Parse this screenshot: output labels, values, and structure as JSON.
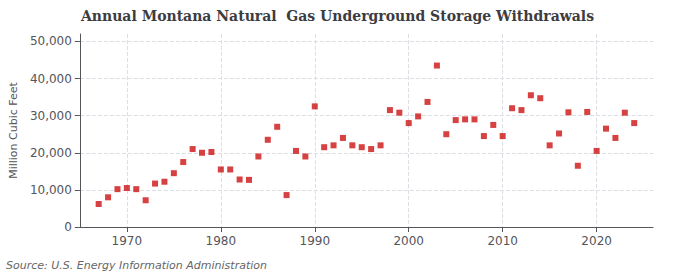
{
  "chart_data": {
    "type": "scatter",
    "title": "Annual Montana Natural  Gas Underground Storage Withdrawals",
    "ylabel": "Million Cubic Feet",
    "source": "Source: U.S. Energy Information Administration",
    "color": "#cc1111",
    "marker": "square",
    "grid": true,
    "xlim": [
      1965,
      2026
    ],
    "ylim": [
      0,
      52000
    ],
    "xticks": [
      1970,
      1980,
      1990,
      2000,
      2010,
      2020
    ],
    "yticks": [
      0,
      {
        "value": 10000,
        "label": "10,000"
      },
      {
        "value": 20000,
        "label": "20,000"
      },
      {
        "value": 30000,
        "label": "30,000"
      },
      {
        "value": 40000,
        "label": "40,000"
      },
      {
        "value": 50000,
        "label": "50,000"
      }
    ],
    "x": [
      1967,
      1968,
      1969,
      1970,
      1971,
      1972,
      1973,
      1974,
      1975,
      1976,
      1977,
      1978,
      1979,
      1980,
      1981,
      1982,
      1983,
      1984,
      1985,
      1986,
      1987,
      1988,
      1989,
      1990,
      1991,
      1992,
      1993,
      1994,
      1995,
      1996,
      1997,
      1998,
      1999,
      2000,
      2001,
      2002,
      2003,
      2004,
      2005,
      2006,
      2007,
      2008,
      2009,
      2010,
      2011,
      2012,
      2013,
      2014,
      2015,
      2016,
      2017,
      2018,
      2019,
      2020,
      2021,
      2022,
      2023,
      2024
    ],
    "values": [
      6200,
      8000,
      10200,
      10500,
      10200,
      7200,
      11700,
      12200,
      14500,
      17500,
      21000,
      20000,
      20200,
      15500,
      15500,
      12800,
      12700,
      19000,
      23500,
      27000,
      8600,
      20500,
      19000,
      32500,
      21500,
      22000,
      24000,
      22000,
      21500,
      21000,
      22000,
      31500,
      30800,
      28000,
      29800,
      33700,
      43500,
      25000,
      28800,
      29000,
      29000,
      24500,
      27500,
      24500,
      32000,
      31500,
      35500,
      34700,
      22000,
      25200,
      30900,
      16500,
      31000,
      20500,
      26500,
      24000,
      30800,
      28000
    ]
  }
}
